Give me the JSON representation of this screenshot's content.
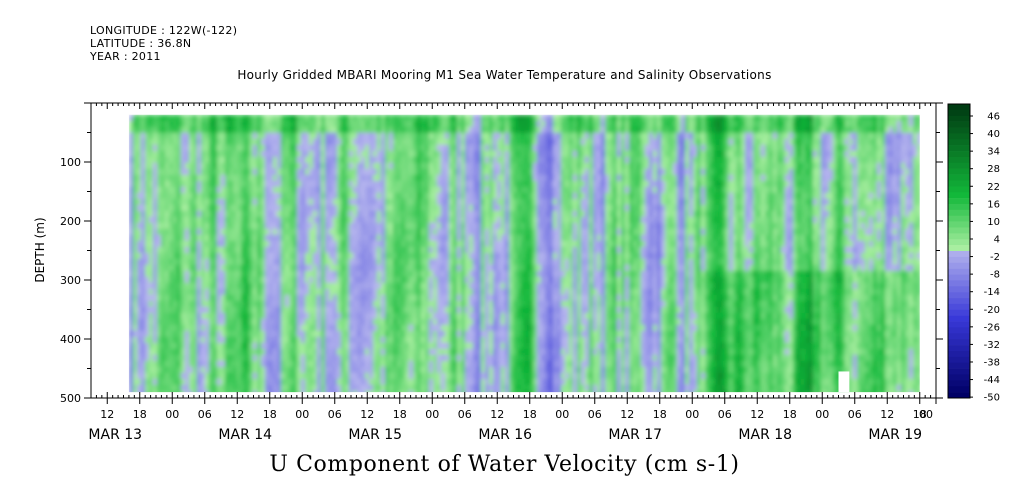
{
  "header": {
    "longitude": "LONGITUDE : 122W(-122)",
    "latitude": "LATITUDE : 36.8N",
    "year": "YEAR : 2011"
  },
  "chart_data": {
    "type": "heatmap",
    "title": "Hourly Gridded MBARI Mooring M1 Sea Water Temperature and Salinity Observations",
    "colorbar_label": "U Component of Water Velocity (cm s-1)",
    "ylabel": "DEPTH (m)",
    "xlabel": "",
    "y_reversed": true,
    "ylim": [
      500,
      0
    ],
    "y_ticks": [
      100,
      200,
      300,
      400,
      500
    ],
    "y_tick_labels": [
      "100",
      "200",
      "300",
      "400",
      "500"
    ],
    "data_depth_range": [
      20,
      490
    ],
    "data_time_range_hours": [
      16,
      162
    ],
    "x_range_hours": [
      9,
      165
    ],
    "x_hour_ticks": [
      {
        "h": 12,
        "label": "12"
      },
      {
        "h": 18,
        "label": "18"
      },
      {
        "h": 24,
        "label": "00"
      },
      {
        "h": 30,
        "label": "06"
      },
      {
        "h": 36,
        "label": "12"
      },
      {
        "h": 42,
        "label": "18"
      },
      {
        "h": 48,
        "label": "00"
      },
      {
        "h": 54,
        "label": "06"
      },
      {
        "h": 60,
        "label": "12"
      },
      {
        "h": 66,
        "label": "18"
      },
      {
        "h": 72,
        "label": "00"
      },
      {
        "h": 78,
        "label": "06"
      },
      {
        "h": 84,
        "label": "12"
      },
      {
        "h": 90,
        "label": "18"
      },
      {
        "h": 96,
        "label": "00"
      },
      {
        "h": 102,
        "label": "06"
      },
      {
        "h": 108,
        "label": "12"
      },
      {
        "h": 114,
        "label": "18"
      },
      {
        "h": 120,
        "label": "00"
      },
      {
        "h": 126,
        "label": "06"
      },
      {
        "h": 132,
        "label": "12"
      },
      {
        "h": 138,
        "label": "18"
      },
      {
        "h": 144,
        "label": "00"
      },
      {
        "h": 150,
        "label": "06"
      },
      {
        "h": 156,
        "label": "12"
      },
      {
        "h": 162,
        "label": "18"
      },
      {
        "h": 168,
        "label": "00"
      }
    ],
    "x_day_labels": [
      {
        "h": 12,
        "label": "MAR 13"
      },
      {
        "h": 36,
        "label": "MAR 14"
      },
      {
        "h": 60,
        "label": "MAR 15"
      },
      {
        "h": 84,
        "label": "MAR 16"
      },
      {
        "h": 108,
        "label": "MAR 17"
      },
      {
        "h": 132,
        "label": "MAR 18"
      },
      {
        "h": 156,
        "label": "MAR 19"
      }
    ],
    "colorbar_levels": [
      48,
      46,
      44,
      42,
      40,
      38,
      36,
      34,
      32,
      30,
      28,
      26,
      24,
      22,
      20,
      18,
      16,
      14,
      12,
      10,
      8,
      6,
      4,
      2,
      0,
      -2,
      -4,
      -6,
      -8,
      -10,
      -12,
      -14,
      -16,
      -18,
      -20,
      -22,
      -24,
      -26,
      -28,
      -30,
      -32,
      -34,
      -36,
      -38,
      -40,
      -42,
      -44,
      -46,
      -48,
      -50
    ],
    "colorbar_tick_labels": [
      "46",
      "40",
      "34",
      "28",
      "22",
      "16",
      "10",
      "4",
      "-2",
      "-8",
      "-14",
      "-20",
      "-26",
      "-32",
      "-38",
      "-44",
      "-50"
    ],
    "color_scale": {
      "positive_dark": "#003b12",
      "positive_mid": "#12b83a",
      "positive_light": "#a8eea0",
      "negative_light": "#b8b8ee",
      "negative_mid": "#3838d8",
      "negative_dark": "#000066"
    }
  }
}
